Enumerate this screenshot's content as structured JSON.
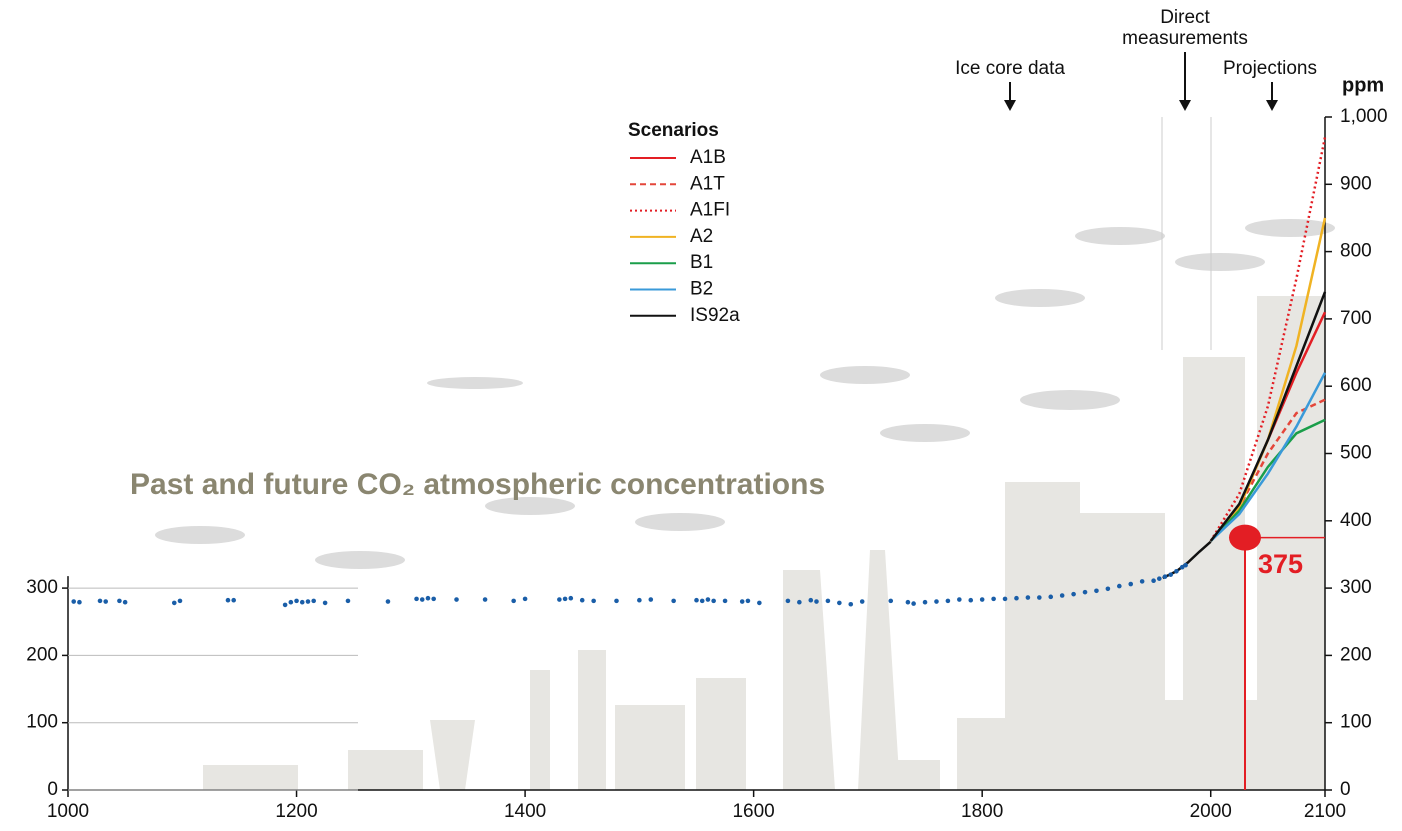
{
  "chart_data": {
    "type": "line",
    "title": "Past and future CO₂ atmospheric concentrations",
    "y_unit": "ppm",
    "legend_title": "Scenarios",
    "annotations": {
      "ice_core": "Ice core data",
      "direct": "Direct measurements",
      "projections": "Projections"
    },
    "xlim": [
      1000,
      2100
    ],
    "xticks": [
      1000,
      1200,
      1400,
      1600,
      1800,
      2000,
      2100
    ],
    "ylim": [
      0,
      1000
    ],
    "yticks": [
      0,
      100,
      200,
      300,
      400,
      500,
      600,
      700,
      800,
      900,
      {
        "value": 1000,
        "label": "1,000"
      }
    ],
    "left_yticks": [
      0,
      100,
      200,
      300
    ],
    "ice_core": {
      "color": "#1a5ea8",
      "x": [
        1005,
        1010,
        1028,
        1033,
        1045,
        1050,
        1093,
        1098,
        1140,
        1145,
        1190,
        1195,
        1200,
        1205,
        1210,
        1215,
        1225,
        1245,
        1280,
        1305,
        1310,
        1315,
        1320,
        1340,
        1365,
        1390,
        1400,
        1430,
        1435,
        1440,
        1450,
        1460,
        1480,
        1500,
        1510,
        1530,
        1550,
        1555,
        1560,
        1565,
        1575,
        1590,
        1595,
        1605,
        1630,
        1640,
        1650,
        1655,
        1665,
        1675,
        1685,
        1695,
        1720,
        1735,
        1740,
        1750,
        1760,
        1770,
        1780,
        1790,
        1800,
        1810,
        1820,
        1830,
        1840,
        1850,
        1860,
        1870,
        1880,
        1890,
        1900,
        1910,
        1920,
        1930,
        1940,
        1950,
        1955,
        1960,
        1965,
        1970,
        1975,
        1978
      ],
      "values": [
        280,
        279,
        281,
        280,
        281,
        279,
        278,
        281,
        282,
        282,
        275,
        279,
        281,
        279,
        280,
        281,
        278,
        281,
        280,
        284,
        283,
        285,
        284,
        283,
        283,
        281,
        284,
        283,
        284,
        285,
        282,
        281,
        281,
        282,
        283,
        281,
        282,
        281,
        283,
        281,
        281,
        280,
        281,
        278,
        281,
        279,
        282,
        280,
        281,
        278,
        276,
        280,
        281,
        279,
        277,
        279,
        280,
        281,
        283,
        282,
        283,
        284,
        284,
        285,
        286,
        286,
        287,
        289,
        291,
        294,
        296,
        299,
        303,
        306,
        310,
        311,
        314,
        317,
        320,
        325,
        331,
        334
      ]
    },
    "direct_measurements": {
      "color": "#111111",
      "x": [
        1958,
        1970,
        1980,
        1990,
        2000
      ],
      "values": [
        315,
        325,
        338,
        354,
        369
      ]
    },
    "series": [
      {
        "name": "A1B",
        "color": "#e31e24",
        "dash": "solid",
        "x": [
          2000,
          2025,
          2050,
          2075,
          2100
        ],
        "values": [
          370,
          420,
          520,
          620,
          710
        ]
      },
      {
        "name": "A1T",
        "color": "#e4463a",
        "dash": "dashed",
        "x": [
          2000,
          2025,
          2050,
          2075,
          2100
        ],
        "values": [
          370,
          420,
          500,
          560,
          580
        ]
      },
      {
        "name": "A1FI",
        "color": "#e31e24",
        "dash": "dotted",
        "x": [
          2000,
          2025,
          2050,
          2075,
          2100
        ],
        "values": [
          370,
          440,
          570,
          760,
          970
        ]
      },
      {
        "name": "A2",
        "color": "#f0b323",
        "dash": "solid",
        "x": [
          2000,
          2025,
          2050,
          2075,
          2100
        ],
        "values": [
          370,
          420,
          520,
          660,
          850
        ]
      },
      {
        "name": "B1",
        "color": "#1a9e4a",
        "dash": "solid",
        "x": [
          2000,
          2025,
          2050,
          2075,
          2100
        ],
        "values": [
          370,
          415,
          480,
          530,
          550
        ]
      },
      {
        "name": "B2",
        "color": "#3a9ad9",
        "dash": "solid",
        "x": [
          2000,
          2025,
          2050,
          2075,
          2100
        ],
        "values": [
          370,
          410,
          470,
          540,
          620
        ]
      },
      {
        "name": "IS92a",
        "color": "#111111",
        "dash": "solid",
        "x": [
          2000,
          2025,
          2050,
          2075,
          2100
        ],
        "values": [
          370,
          425,
          520,
          630,
          740
        ]
      }
    ],
    "marker": {
      "value": 375,
      "color": "#e31e24"
    }
  }
}
